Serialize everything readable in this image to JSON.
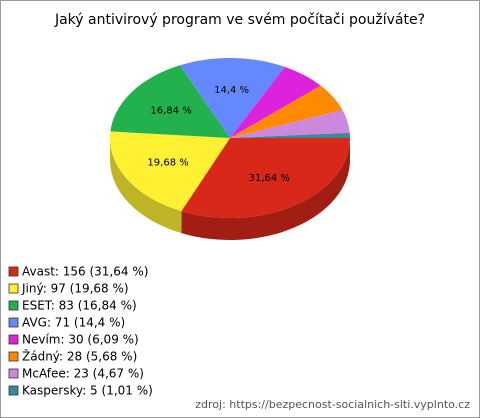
{
  "chart_data": {
    "type": "pie",
    "title": "Jaký antivirový program ve svém počítači používáte?",
    "legend_labels": [
      "Avast: 156 (31,64 %)",
      "Jiný: 97 (19,68 %)",
      "ESET: 83 (16,84 %)",
      "AVG: 71 (14,4 %)",
      "Nevím: 30 (6,09 %)",
      "Žádný: 28 (5,68 %)",
      "McAfee: 23 (4,67 %)",
      "Kaspersky: 5 (1,01 %)"
    ],
    "counts": [
      156,
      97,
      83,
      71,
      30,
      28,
      23,
      5
    ],
    "values": [
      31.64,
      19.68,
      16.84,
      14.4,
      6.09,
      5.68,
      4.67,
      1.01
    ],
    "value_labels": [
      "31,64 %",
      "19,68 %",
      "16,84 %",
      "14,4 %",
      null,
      null,
      null,
      null
    ],
    "colors": [
      "#d8281a",
      "#fff033",
      "#22b14c",
      "#6688ff",
      "#dd22dd",
      "#ff8a00",
      "#cc88dd",
      "#3a8a9a"
    ],
    "legend": "bottom-left",
    "source": "zdroj: https://bezpecnost-socialnich-siti.vyplnto.cz"
  }
}
